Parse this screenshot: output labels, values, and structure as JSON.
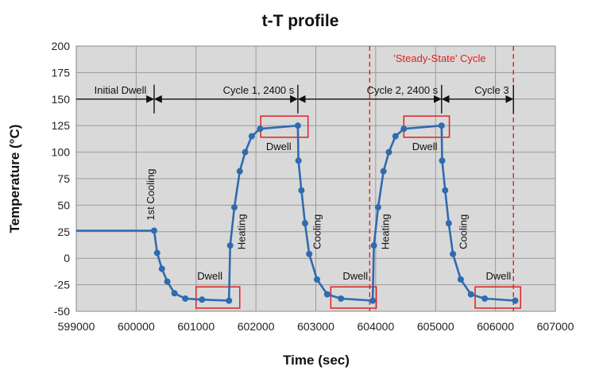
{
  "chart_data": {
    "type": "line",
    "title": "t-T profile",
    "xlabel": "Time (sec)",
    "ylabel": "Temperature (°C)",
    "xlim": [
      599000,
      607000
    ],
    "ylim": [
      -50,
      200
    ],
    "xticks": [
      599000,
      600000,
      601000,
      602000,
      603000,
      604000,
      605000,
      606000,
      607000
    ],
    "xtick_labels": [
      "599000",
      "600000",
      "601000",
      "602000",
      "603000",
      "604000",
      "605000",
      "606000",
      "607000"
    ],
    "yticks": [
      -50,
      -25,
      0,
      25,
      50,
      75,
      100,
      125,
      150,
      175,
      200
    ],
    "ytick_labels": [
      "-50",
      "-25",
      "0",
      "25",
      "50",
      "75",
      "100",
      "125",
      "150",
      "175",
      "200"
    ],
    "grid": true,
    "plot_background": "#d9d9d9",
    "series_color": "#2e6bb0",
    "series": [
      {
        "points": [
          [
            599000,
            26
          ],
          [
            600300,
            26
          ],
          [
            600350,
            5
          ],
          [
            600430,
            -10
          ],
          [
            600520,
            -22
          ],
          [
            600640,
            -33
          ],
          [
            600820,
            -38
          ],
          [
            601100,
            -39
          ],
          [
            601550,
            -40
          ],
          [
            601570,
            12
          ],
          [
            601640,
            48
          ],
          [
            601730,
            82
          ],
          [
            601820,
            100
          ],
          [
            601930,
            115
          ],
          [
            602070,
            122
          ],
          [
            602700,
            125
          ],
          [
            602710,
            92
          ],
          [
            602760,
            64
          ],
          [
            602820,
            33
          ],
          [
            602890,
            4
          ],
          [
            603020,
            -20
          ],
          [
            603190,
            -34
          ],
          [
            603420,
            -38
          ],
          [
            603950,
            -40
          ],
          [
            603970,
            12
          ],
          [
            604040,
            48
          ],
          [
            604130,
            82
          ],
          [
            604220,
            100
          ],
          [
            604330,
            115
          ],
          [
            604470,
            122
          ],
          [
            605100,
            125
          ],
          [
            605110,
            92
          ],
          [
            605160,
            64
          ],
          [
            605220,
            33
          ],
          [
            605290,
            4
          ],
          [
            605420,
            -20
          ],
          [
            605590,
            -34
          ],
          [
            605820,
            -38
          ],
          [
            606330,
            -40
          ]
        ],
        "marker_from_index": 1
      }
    ],
    "phase_bar": {
      "y": 150,
      "markers": [
        600300,
        602700,
        605100,
        606300
      ],
      "labels": [
        {
          "text": "Initial Dwell",
          "x": 599300,
          "y": 150
        },
        {
          "text": "Cycle 1, 2400 s",
          "x": 601450,
          "y": 150
        },
        {
          "text": "Cycle 2, 2400 s",
          "x": 603850,
          "y": 150
        },
        {
          "text": "Cycle 3",
          "x": 605650,
          "y": 150
        }
      ]
    },
    "steady_state": {
      "label": "'Steady-State' Cycle",
      "x_start": 603900,
      "x_end": 606300,
      "label_x": 605070,
      "label_y": 188,
      "color": "#e02020"
    },
    "annotations": [
      {
        "text": "1st Cooling",
        "x": 600300,
        "y": 60,
        "rotate": true
      },
      {
        "text": "Heating",
        "x": 601820,
        "y": 25,
        "rotate": true
      },
      {
        "text": "Cooling",
        "x": 603080,
        "y": 25,
        "rotate": true
      },
      {
        "text": "Heating",
        "x": 604220,
        "y": 25,
        "rotate": true
      },
      {
        "text": "Cooling",
        "x": 605520,
        "y": 25,
        "rotate": true
      },
      {
        "text": "Dwell",
        "x": 601230,
        "y": -20,
        "rotate": false
      },
      {
        "text": "Dwell",
        "x": 602380,
        "y": 102,
        "rotate": false
      },
      {
        "text": "Dwell",
        "x": 603660,
        "y": -20,
        "rotate": false
      },
      {
        "text": "Dwell",
        "x": 604820,
        "y": 102,
        "rotate": false
      },
      {
        "text": "Dwell",
        "x": 606050,
        "y": -20,
        "rotate": false
      }
    ],
    "dwell_boxes": [
      [
        601000,
        601730,
        -47,
        -27
      ],
      [
        602080,
        602870,
        114,
        134
      ],
      [
        603250,
        604010,
        -47,
        -27
      ],
      [
        604470,
        605230,
        114,
        134
      ],
      [
        605660,
        606420,
        -47,
        -27
      ]
    ]
  }
}
